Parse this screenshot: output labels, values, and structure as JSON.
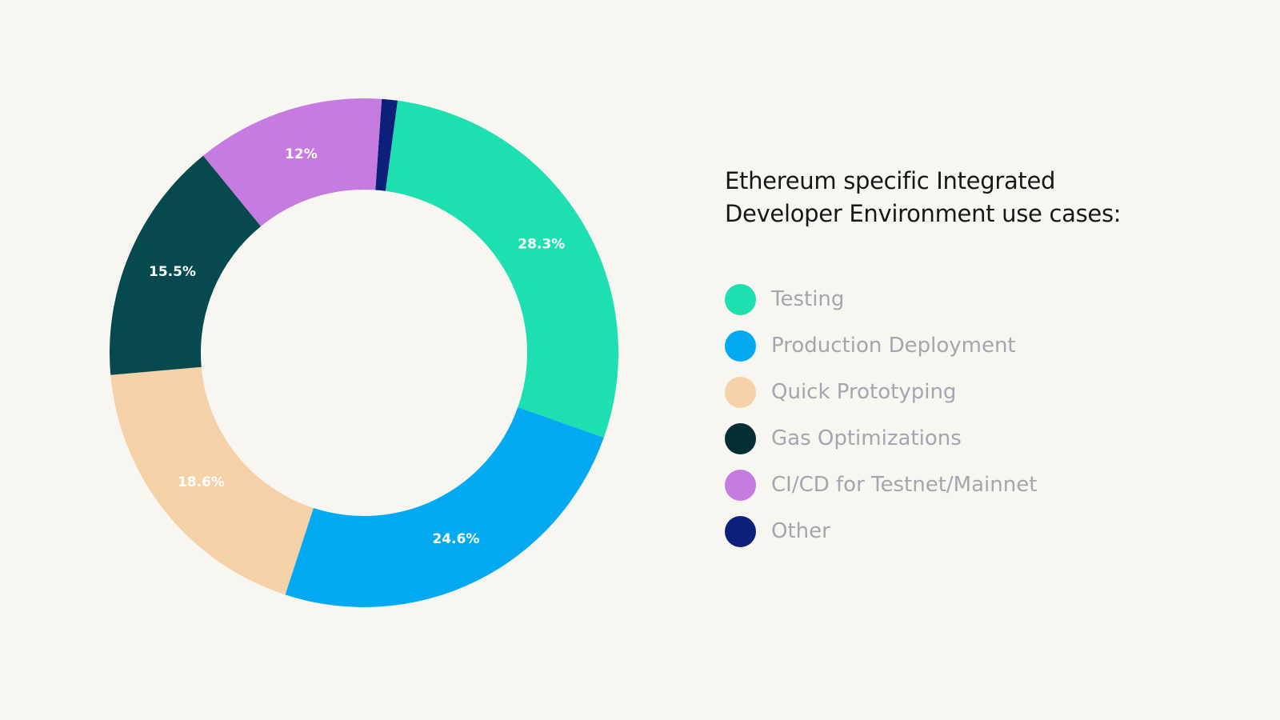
{
  "chart_data": {
    "type": "pie",
    "donut": true,
    "title": "Ethereum specific Integrated Developer Environment use cases:",
    "title_lines": [
      "Ethereum specific Integrated",
      "Developer Environment use cases:"
    ],
    "legend_placement": "right",
    "slices": [
      {
        "name": "Other",
        "value": 1,
        "label": "",
        "color": "#0c1f79"
      },
      {
        "name": "Testing",
        "value": 28.3,
        "label": "28.3%",
        "color": "#1ddfb0"
      },
      {
        "name": "Production Deployment",
        "value": 24.6,
        "label": "24.6%",
        "color": "#03aaf2"
      },
      {
        "name": "Quick Prototyping",
        "value": 18.6,
        "label": "18.6%",
        "color": "#f5d1a7"
      },
      {
        "name": "Gas Optimizations",
        "value": 15.5,
        "label": "15.5%",
        "color": "#064a50"
      },
      {
        "name": "CI/CD for Testnet/Mainnet",
        "value": 12,
        "label": "12%",
        "color": "#c57bdf"
      }
    ],
    "legend": [
      {
        "name": "Testing",
        "color": "#1ddfb0"
      },
      {
        "name": "Production Deployment",
        "color": "#03aaf2"
      },
      {
        "name": "Quick Prototyping",
        "color": "#f5d1a7"
      },
      {
        "name": "Gas Optimizations",
        "color": "#032e34"
      },
      {
        "name": "CI/CD for Testnet/Mainnet",
        "color": "#c57bdf"
      },
      {
        "name": "Other",
        "color": "#0c1f79"
      }
    ]
  },
  "background": "#f8f6f1"
}
